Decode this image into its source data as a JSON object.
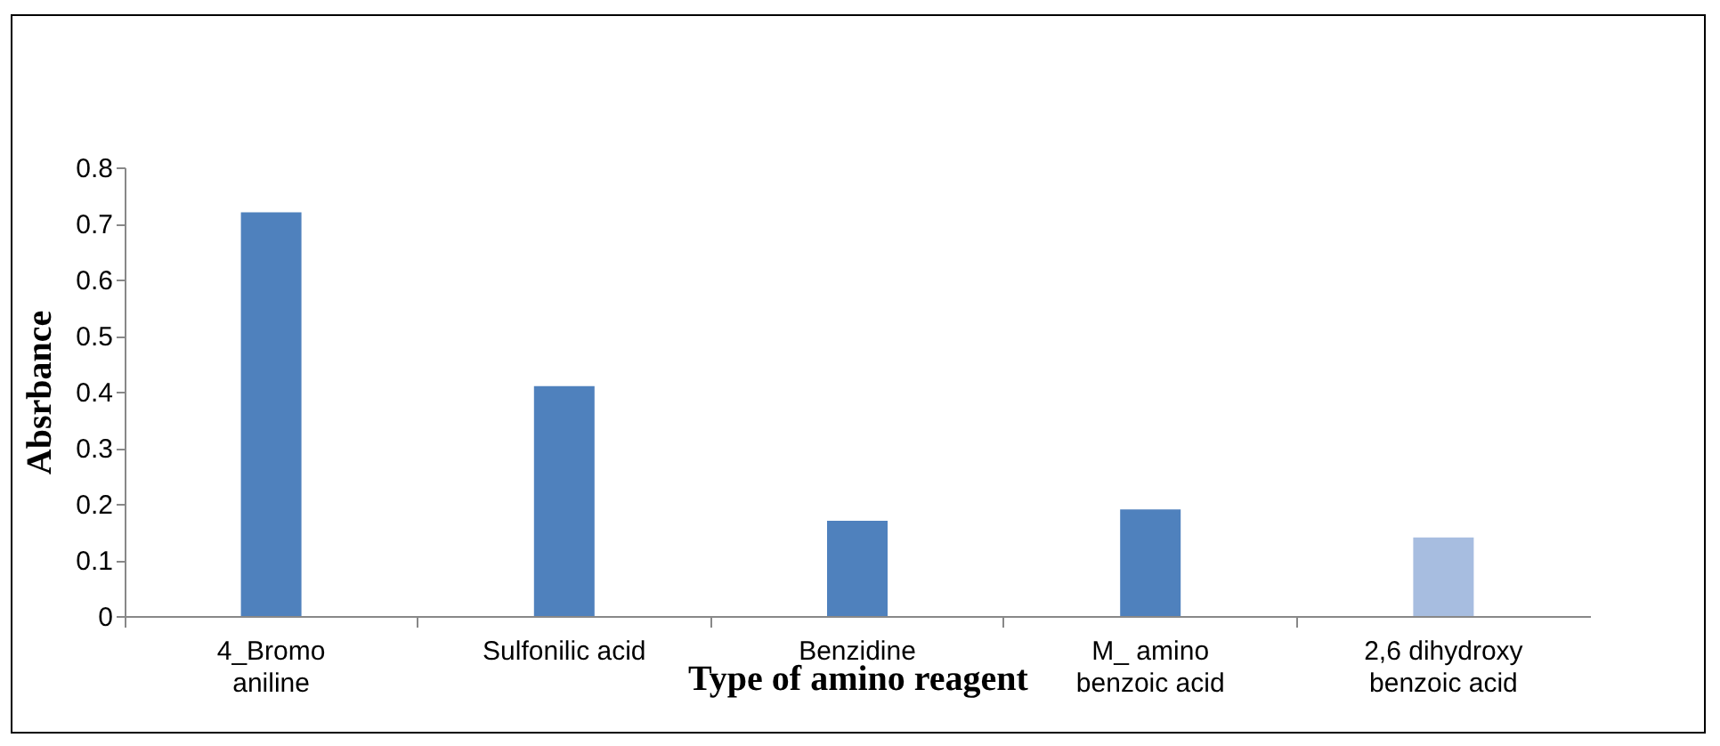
{
  "chart_data": {
    "type": "bar",
    "xlabel": "Type of amino reagent",
    "ylabel": "Absrbance",
    "categories": [
      "4_Bromo\naniline",
      "Sulfonilic acid",
      "Benzidine",
      "M_ amino\nbenzoic acid",
      "2,6 dihydroxy\nbenzoic acid"
    ],
    "values": [
      0.72,
      0.41,
      0.17,
      0.19,
      0.14
    ],
    "colors": [
      "#4f81bd",
      "#4f81bd",
      "#4f81bd",
      "#4f81bd",
      "#a7bde0"
    ],
    "ylim": [
      0,
      0.8
    ],
    "yticks": [
      0,
      0.1,
      0.2,
      0.3,
      0.4,
      0.5,
      0.6,
      0.7,
      0.8
    ],
    "grid": false
  }
}
